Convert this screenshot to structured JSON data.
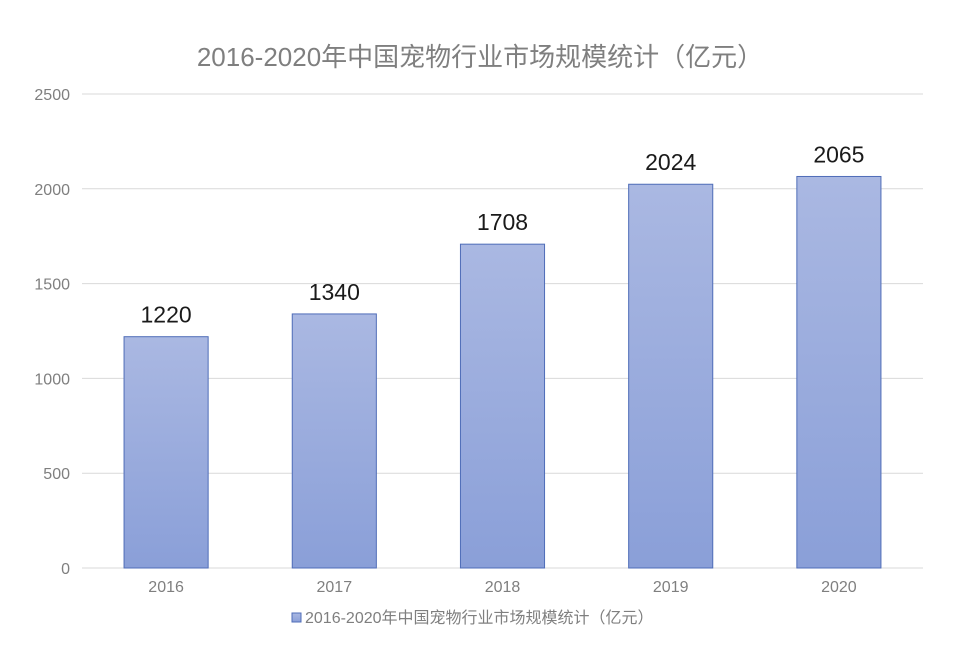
{
  "chart_data": {
    "type": "bar",
    "title": "2016-2020年中国宠物行业市场规模统计（亿元）",
    "categories": [
      "2016",
      "2017",
      "2018",
      "2019",
      "2020"
    ],
    "series": [
      {
        "name": "2016-2020年中国宠物行业市场规模统计（亿元）",
        "values": [
          1220,
          1340,
          1708,
          2024,
          2065
        ],
        "color": "#8ea3d9"
      }
    ],
    "data_labels": [
      "1220",
      "1340",
      "1708",
      "2024",
      "2065"
    ],
    "yticks": [
      "0",
      "500",
      "1000",
      "1500",
      "2000",
      "2500"
    ],
    "ylim": [
      0,
      2500
    ],
    "grid": true,
    "legend": "bottom"
  }
}
